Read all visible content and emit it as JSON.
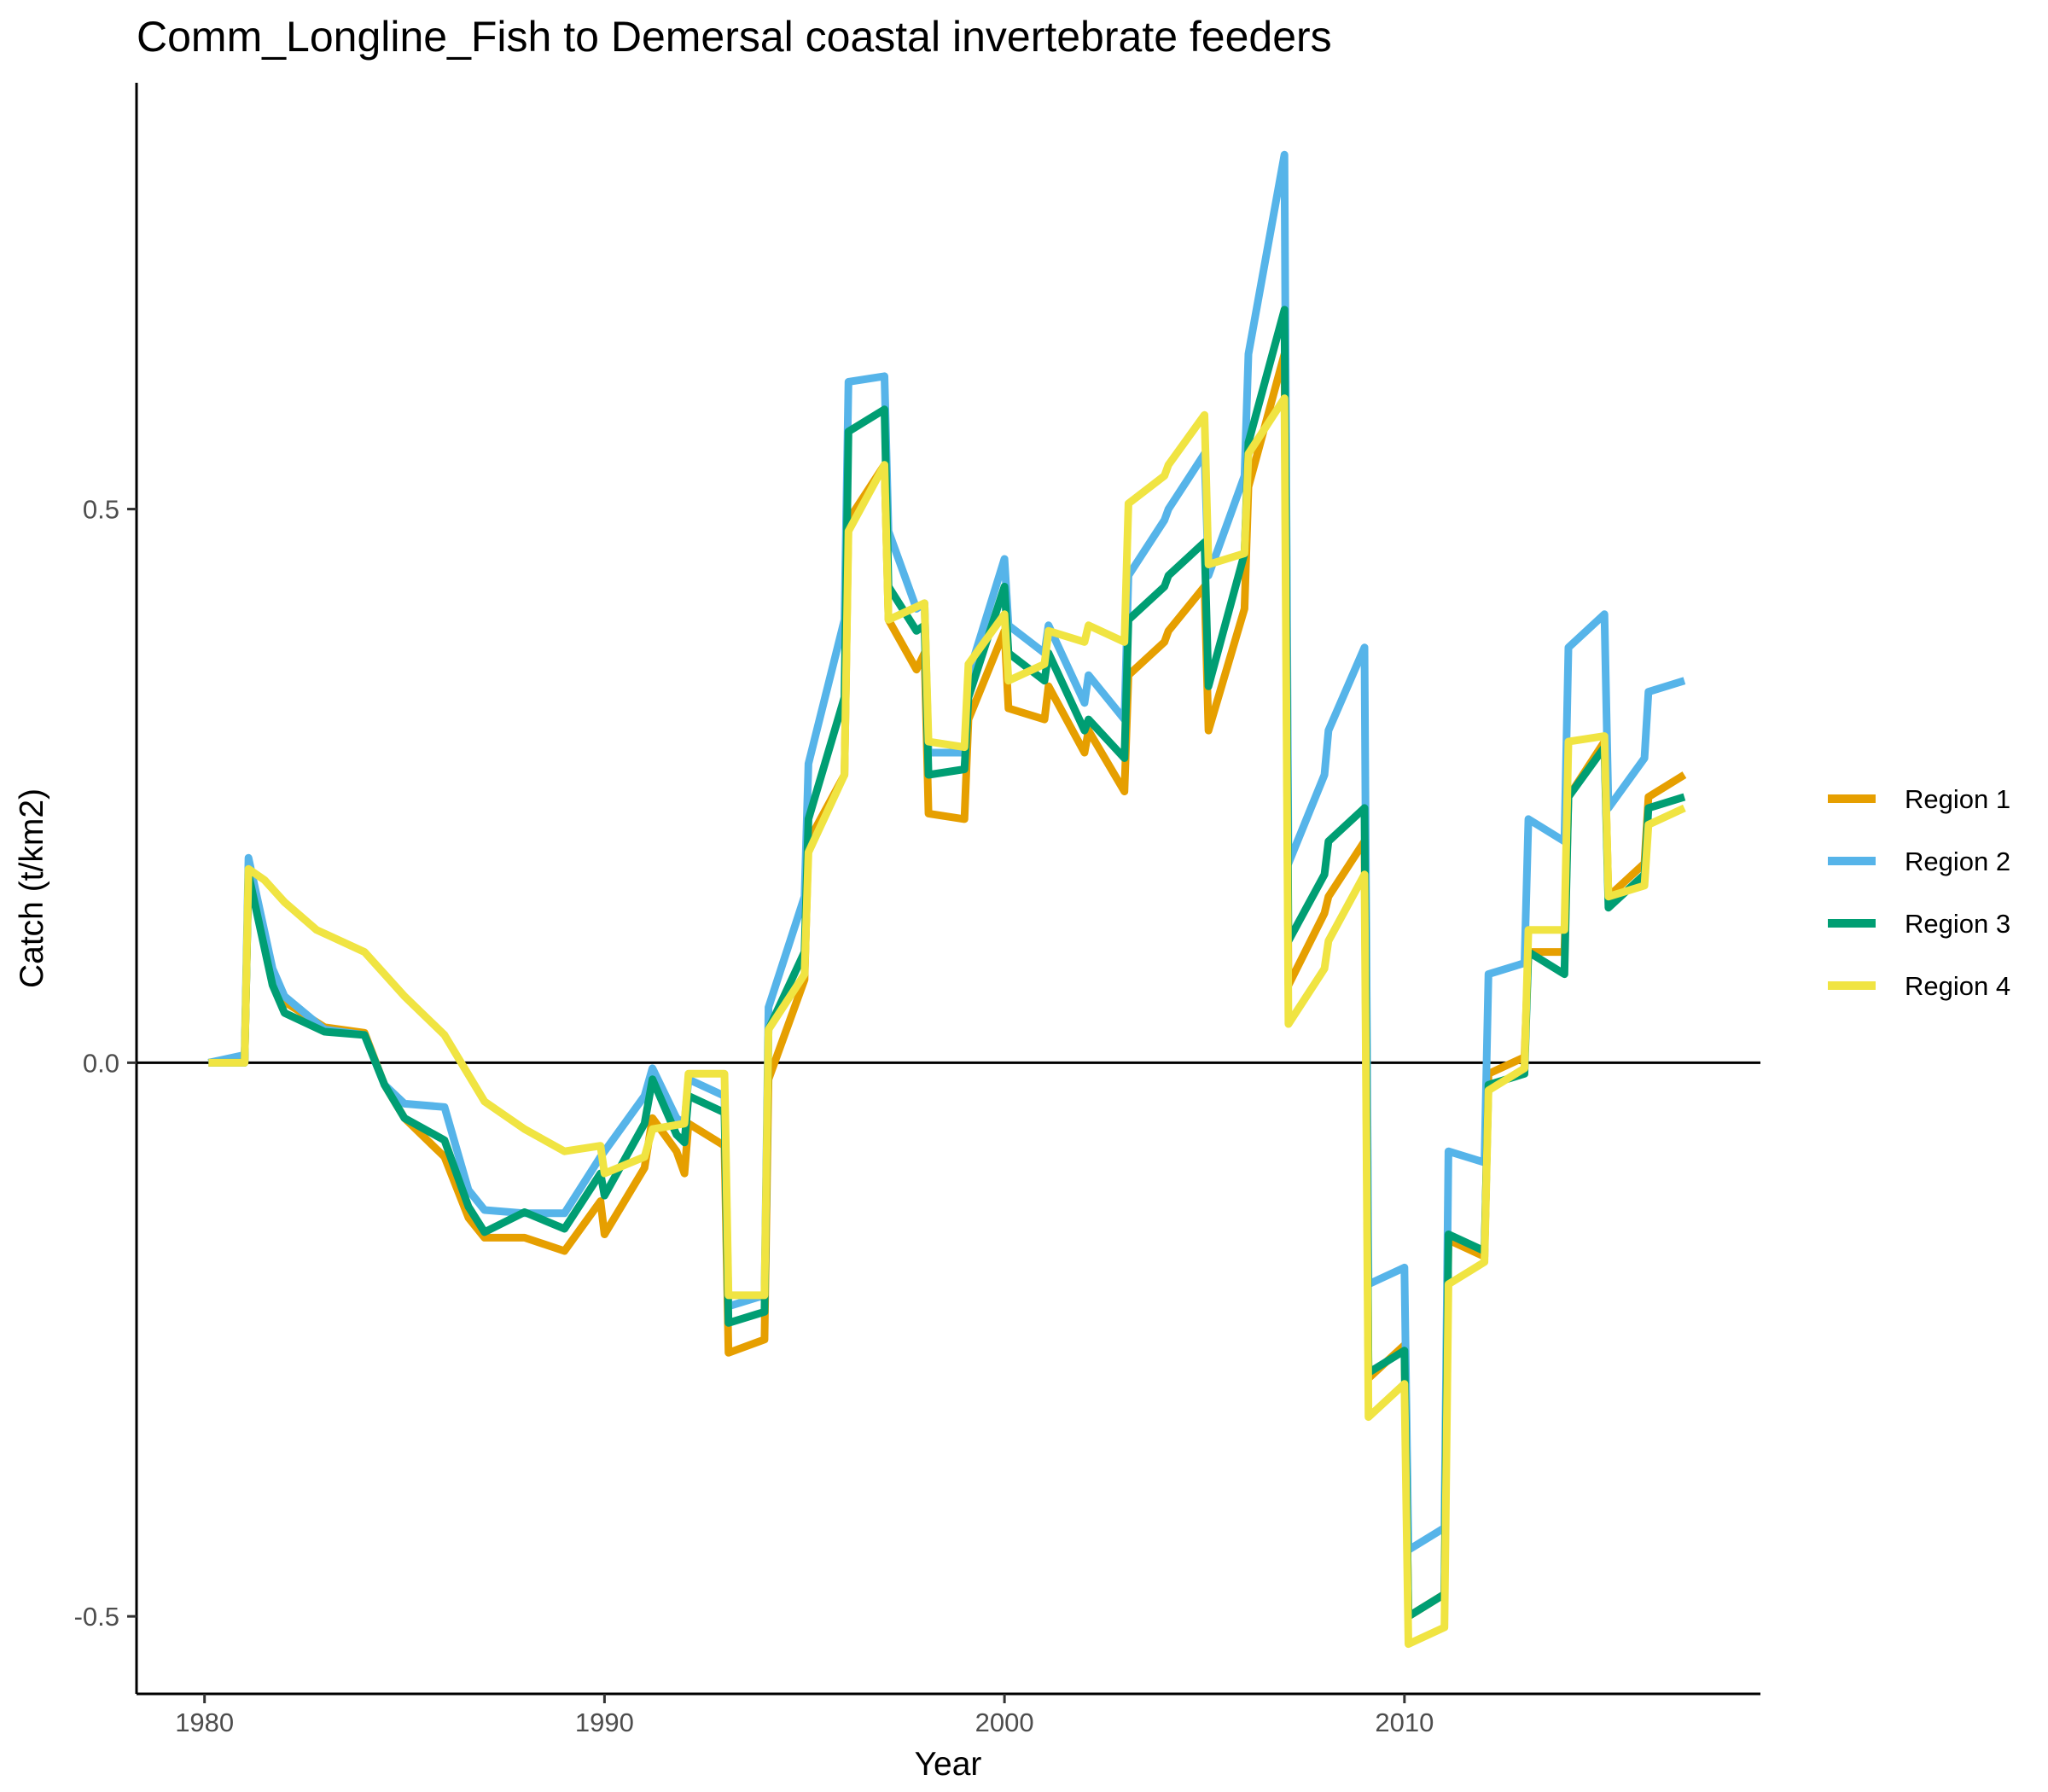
{
  "chart_data": {
    "type": "line",
    "title": "Comm_Longline_Fish to Demersal coastal invertebrate feeders",
    "xlabel": "Year",
    "ylabel": "Catch (t/km2)",
    "xlim": [
      1978.3,
      2018.9
    ],
    "ylim": [
      -0.57,
      0.885
    ],
    "x_ticks": [
      1980,
      1990,
      2000,
      2010
    ],
    "x_tick_labels": [
      "1980",
      "1990",
      "2000",
      "2010"
    ],
    "y_ticks": [
      -0.5,
      0.0,
      0.5
    ],
    "y_tick_labels": [
      "-0.5",
      "0.0",
      "0.5"
    ],
    "zero_line": 0,
    "grid": false,
    "legend_position": "right",
    "series": [
      {
        "name": "Region 1",
        "color": "#E69F00",
        "points": [
          [
            1980.1,
            0
          ],
          [
            1981,
            0
          ],
          [
            1981.1,
            0.17
          ],
          [
            1981.7,
            0.08
          ],
          [
            1982,
            0.055
          ],
          [
            1983,
            0.032
          ],
          [
            1984,
            0.027
          ],
          [
            1984.5,
            -0.02
          ],
          [
            1985,
            -0.05
          ],
          [
            1986,
            -0.085
          ],
          [
            1986.6,
            -0.14
          ],
          [
            1987,
            -0.158
          ],
          [
            1988,
            -0.158
          ],
          [
            1989,
            -0.17
          ],
          [
            1989.9,
            -0.125
          ],
          [
            1990,
            -0.155
          ],
          [
            1991,
            -0.095
          ],
          [
            1991.2,
            -0.05
          ],
          [
            1991.8,
            -0.08
          ],
          [
            1992,
            -0.1
          ],
          [
            1992.1,
            -0.055
          ],
          [
            1993,
            -0.075
          ],
          [
            1993.1,
            -0.262
          ],
          [
            1994,
            -0.25
          ],
          [
            1994.1,
            -0.015
          ],
          [
            1995,
            0.075
          ],
          [
            1995.1,
            0.2
          ],
          [
            1996,
            0.26
          ],
          [
            1996.1,
            0.49
          ],
          [
            1997,
            0.54
          ],
          [
            1997.1,
            0.4
          ],
          [
            1997.8,
            0.355
          ],
          [
            1998,
            0.37
          ],
          [
            1998.1,
            0.225
          ],
          [
            1999,
            0.22
          ],
          [
            1999.1,
            0.31
          ],
          [
            2000,
            0.39
          ],
          [
            2000.1,
            0.32
          ],
          [
            2001,
            0.31
          ],
          [
            2001.1,
            0.34
          ],
          [
            2002,
            0.28
          ],
          [
            2002.1,
            0.3
          ],
          [
            2003,
            0.245
          ],
          [
            2003.1,
            0.35
          ],
          [
            2004,
            0.38
          ],
          [
            2004.1,
            0.39
          ],
          [
            2005,
            0.43
          ],
          [
            2005.1,
            0.3
          ],
          [
            2006,
            0.41
          ],
          [
            2006.1,
            0.52
          ],
          [
            2007,
            0.64
          ],
          [
            2007.1,
            0.07
          ],
          [
            2008,
            0.135
          ],
          [
            2008.1,
            0.15
          ],
          [
            2009,
            0.2
          ],
          [
            2009.1,
            -0.285
          ],
          [
            2010,
            -0.255
          ],
          [
            2010.1,
            -0.5
          ],
          [
            2011,
            -0.48
          ],
          [
            2011.1,
            -0.16
          ],
          [
            2012,
            -0.175
          ],
          [
            2012.1,
            -0.01
          ],
          [
            2013,
            0.005
          ],
          [
            2013.1,
            0.1
          ],
          [
            2014,
            0.1
          ],
          [
            2014.1,
            0.24
          ],
          [
            2015,
            0.29
          ],
          [
            2015.1,
            0.15
          ],
          [
            2016,
            0.18
          ],
          [
            2016.1,
            0.24
          ],
          [
            2017,
            0.26
          ]
        ]
      },
      {
        "name": "Region 2",
        "color": "#56B4E9",
        "points": [
          [
            1980.1,
            0
          ],
          [
            1981,
            0.007
          ],
          [
            1981.1,
            0.185
          ],
          [
            1981.7,
            0.085
          ],
          [
            1982,
            0.06
          ],
          [
            1983,
            0.03
          ],
          [
            1984,
            0.025
          ],
          [
            1984.5,
            -0.02
          ],
          [
            1985,
            -0.037
          ],
          [
            1986,
            -0.04
          ],
          [
            1986.6,
            -0.115
          ],
          [
            1987,
            -0.133
          ],
          [
            1988,
            -0.136
          ],
          [
            1989,
            -0.136
          ],
          [
            1989.9,
            -0.085
          ],
          [
            1990,
            -0.08
          ],
          [
            1991,
            -0.03
          ],
          [
            1991.2,
            -0.005
          ],
          [
            1991.8,
            -0.05
          ],
          [
            1992,
            -0.055
          ],
          [
            1992.1,
            -0.015
          ],
          [
            1993,
            -0.03
          ],
          [
            1993.1,
            -0.22
          ],
          [
            1994,
            -0.21
          ],
          [
            1994.1,
            0.05
          ],
          [
            1995,
            0.15
          ],
          [
            1995.1,
            0.27
          ],
          [
            1996,
            0.4
          ],
          [
            1996.1,
            0.615
          ],
          [
            1997,
            0.62
          ],
          [
            1997.1,
            0.48
          ],
          [
            1997.8,
            0.41
          ],
          [
            1998,
            0.415
          ],
          [
            1998.1,
            0.28
          ],
          [
            1999,
            0.28
          ],
          [
            1999.1,
            0.35
          ],
          [
            2000,
            0.455
          ],
          [
            2000.1,
            0.395
          ],
          [
            2001,
            0.37
          ],
          [
            2001.1,
            0.395
          ],
          [
            2002,
            0.325
          ],
          [
            2002.1,
            0.35
          ],
          [
            2003,
            0.31
          ],
          [
            2003.1,
            0.44
          ],
          [
            2004,
            0.49
          ],
          [
            2004.1,
            0.5
          ],
          [
            2005,
            0.55
          ],
          [
            2005.1,
            0.44
          ],
          [
            2006,
            0.53
          ],
          [
            2006.1,
            0.64
          ],
          [
            2007,
            0.82
          ],
          [
            2007.1,
            0.18
          ],
          [
            2008,
            0.26
          ],
          [
            2008.1,
            0.3
          ],
          [
            2009,
            0.375
          ],
          [
            2009.1,
            -0.2
          ],
          [
            2010,
            -0.185
          ],
          [
            2010.1,
            -0.44
          ],
          [
            2011,
            -0.42
          ],
          [
            2011.1,
            -0.08
          ],
          [
            2012,
            -0.09
          ],
          [
            2012.1,
            0.08
          ],
          [
            2013,
            0.09
          ],
          [
            2013.1,
            0.22
          ],
          [
            2014,
            0.2
          ],
          [
            2014.1,
            0.375
          ],
          [
            2015,
            0.405
          ],
          [
            2015.1,
            0.23
          ],
          [
            2016,
            0.275
          ],
          [
            2016.1,
            0.335
          ],
          [
            2017,
            0.345
          ]
        ]
      },
      {
        "name": "Region 3",
        "color": "#009E73",
        "points": [
          [
            1980.1,
            0
          ],
          [
            1981,
            0
          ],
          [
            1981.1,
            0.17
          ],
          [
            1981.7,
            0.07
          ],
          [
            1982,
            0.045
          ],
          [
            1983,
            0.028
          ],
          [
            1984,
            0.025
          ],
          [
            1984.5,
            -0.02
          ],
          [
            1985,
            -0.05
          ],
          [
            1986,
            -0.07
          ],
          [
            1986.6,
            -0.13
          ],
          [
            1987,
            -0.153
          ],
          [
            1988,
            -0.135
          ],
          [
            1989,
            -0.15
          ],
          [
            1989.9,
            -0.1
          ],
          [
            1990,
            -0.12
          ],
          [
            1991,
            -0.055
          ],
          [
            1991.2,
            -0.015
          ],
          [
            1991.8,
            -0.065
          ],
          [
            1992,
            -0.072
          ],
          [
            1992.1,
            -0.03
          ],
          [
            1993,
            -0.045
          ],
          [
            1993.1,
            -0.235
          ],
          [
            1994,
            -0.225
          ],
          [
            1994.1,
            0.03
          ],
          [
            1995,
            0.1
          ],
          [
            1995.1,
            0.22
          ],
          [
            1996,
            0.33
          ],
          [
            1996.1,
            0.57
          ],
          [
            1997,
            0.59
          ],
          [
            1997.1,
            0.43
          ],
          [
            1997.8,
            0.39
          ],
          [
            1998,
            0.395
          ],
          [
            1998.1,
            0.26
          ],
          [
            1999,
            0.265
          ],
          [
            1999.1,
            0.33
          ],
          [
            2000,
            0.43
          ],
          [
            2000.1,
            0.37
          ],
          [
            2001,
            0.345
          ],
          [
            2001.1,
            0.37
          ],
          [
            2002,
            0.3
          ],
          [
            2002.1,
            0.31
          ],
          [
            2003,
            0.275
          ],
          [
            2003.1,
            0.4
          ],
          [
            2004,
            0.43
          ],
          [
            2004.1,
            0.44
          ],
          [
            2005,
            0.47
          ],
          [
            2005.1,
            0.34
          ],
          [
            2006,
            0.46
          ],
          [
            2006.1,
            0.56
          ],
          [
            2007,
            0.68
          ],
          [
            2007.1,
            0.11
          ],
          [
            2008,
            0.17
          ],
          [
            2008.1,
            0.2
          ],
          [
            2009,
            0.23
          ],
          [
            2009.1,
            -0.28
          ],
          [
            2010,
            -0.26
          ],
          [
            2010.1,
            -0.5
          ],
          [
            2011,
            -0.48
          ],
          [
            2011.1,
            -0.155
          ],
          [
            2012,
            -0.17
          ],
          [
            2012.1,
            -0.02
          ],
          [
            2013,
            -0.01
          ],
          [
            2013.1,
            0.1
          ],
          [
            2014,
            0.08
          ],
          [
            2014.1,
            0.24
          ],
          [
            2015,
            0.285
          ],
          [
            2015.1,
            0.14
          ],
          [
            2016,
            0.17
          ],
          [
            2016.1,
            0.23
          ],
          [
            2017,
            0.24
          ]
        ]
      },
      {
        "name": "Region 4",
        "color": "#F0E442",
        "points": [
          [
            1980.1,
            0
          ],
          [
            1981,
            0
          ],
          [
            1981.1,
            0.175
          ],
          [
            1981.5,
            0.165
          ],
          [
            1982,
            0.145
          ],
          [
            1982.8,
            0.12
          ],
          [
            1984,
            0.1
          ],
          [
            1985,
            0.06
          ],
          [
            1986,
            0.025
          ],
          [
            1987,
            -0.035
          ],
          [
            1988,
            -0.06
          ],
          [
            1989,
            -0.08
          ],
          [
            1989.9,
            -0.075
          ],
          [
            1990,
            -0.1
          ],
          [
            1991,
            -0.085
          ],
          [
            1991.2,
            -0.06
          ],
          [
            1992,
            -0.055
          ],
          [
            1992.1,
            -0.01
          ],
          [
            1993,
            -0.01
          ],
          [
            1993.1,
            -0.21
          ],
          [
            1994,
            -0.21
          ],
          [
            1994.1,
            0.03
          ],
          [
            1995,
            0.08
          ],
          [
            1995.1,
            0.19
          ],
          [
            1996,
            0.26
          ],
          [
            1996.1,
            0.48
          ],
          [
            1997,
            0.54
          ],
          [
            1997.1,
            0.4
          ],
          [
            1998,
            0.415
          ],
          [
            1998.1,
            0.29
          ],
          [
            1999,
            0.285
          ],
          [
            1999.1,
            0.36
          ],
          [
            2000,
            0.405
          ],
          [
            2000.1,
            0.345
          ],
          [
            2001,
            0.36
          ],
          [
            2001.1,
            0.39
          ],
          [
            2002,
            0.38
          ],
          [
            2002.1,
            0.395
          ],
          [
            2003,
            0.38
          ],
          [
            2003.1,
            0.505
          ],
          [
            2004,
            0.53
          ],
          [
            2004.1,
            0.54
          ],
          [
            2005,
            0.585
          ],
          [
            2005.1,
            0.45
          ],
          [
            2006,
            0.46
          ],
          [
            2006.1,
            0.55
          ],
          [
            2007,
            0.6
          ],
          [
            2007.1,
            0.035
          ],
          [
            2008,
            0.085
          ],
          [
            2008.1,
            0.11
          ],
          [
            2009,
            0.17
          ],
          [
            2009.1,
            -0.32
          ],
          [
            2010,
            -0.29
          ],
          [
            2010.1,
            -0.525
          ],
          [
            2011,
            -0.51
          ],
          [
            2011.1,
            -0.2
          ],
          [
            2012,
            -0.18
          ],
          [
            2012.1,
            -0.025
          ],
          [
            2013,
            -0.005
          ],
          [
            2013.1,
            0.12
          ],
          [
            2014,
            0.12
          ],
          [
            2014.1,
            0.29
          ],
          [
            2015,
            0.295
          ],
          [
            2015.1,
            0.15
          ],
          [
            2016,
            0.16
          ],
          [
            2016.1,
            0.215
          ],
          [
            2017,
            0.23
          ]
        ]
      }
    ]
  }
}
